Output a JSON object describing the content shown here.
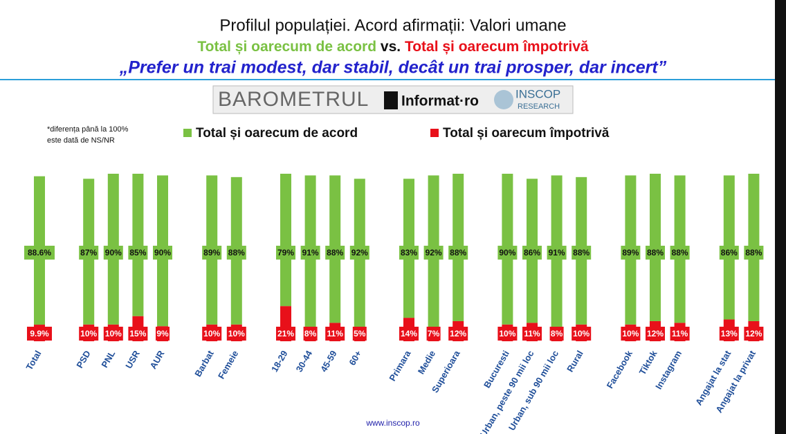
{
  "chart_data": {
    "type": "stacked_bar",
    "title": "Profilul populației. Acord afirmații: Valori umane",
    "subtitle": [
      "Total și oarecum de acord",
      "vs.",
      "Total și oarecum împotrivă"
    ],
    "question": "„Prefer un trai modest, dar stabil, decât un trai prosper, dar incert”",
    "logos": [
      "BAROMETRUL",
      "Informat·ro",
      "INSCOP",
      "RESEARCH"
    ],
    "note": [
      "*diferența până la 100%",
      "este dată de NS/NR"
    ],
    "source": "www.inscop.ro",
    "categories": [
      "Total",
      null,
      "PSD",
      "PNL",
      "USR",
      "AUR",
      null,
      "Barbat",
      "Femeie",
      null,
      "18-29",
      "30-44",
      "45-59",
      "60+",
      null,
      "Primara",
      "Medie",
      "Superioara",
      null,
      "Bucuresti",
      "Urban, peste 90 mii loc",
      "Urban, sub 90 mii loc",
      "Rural",
      null,
      "Facebook",
      "Tiktok",
      "Instagram",
      null,
      "Angajat la stat",
      "Angajat la privat"
    ],
    "series": [
      {
        "name": "Total și oarecum de acord",
        "color": "#7ac143",
        "values": [
          88.6,
          null,
          87,
          90,
          85,
          90,
          null,
          89,
          88,
          null,
          79,
          91,
          88,
          92,
          null,
          83,
          92,
          88,
          null,
          90,
          86,
          91,
          88,
          null,
          89,
          88,
          88,
          null,
          86,
          88
        ],
        "value_labels": [
          "88.6%",
          null,
          "87%",
          "90%",
          "85%",
          "90%",
          null,
          "89%",
          "88%",
          null,
          "79%",
          "91%",
          "88%",
          "92%",
          null,
          "83%",
          "92%",
          "88%",
          null,
          "90%",
          "86%",
          "91%",
          "88%",
          null,
          "89%",
          "88%",
          "88%",
          null,
          "86%",
          "88%"
        ]
      },
      {
        "name": "Total și oarecum împotrivă",
        "color": "#e8101a",
        "values": [
          9.9,
          null,
          10,
          10,
          15,
          9,
          null,
          10,
          10,
          null,
          21,
          8,
          11,
          5,
          null,
          14,
          7,
          12,
          null,
          10,
          11,
          8,
          10,
          null,
          10,
          12,
          11,
          null,
          13,
          12
        ],
        "value_labels": [
          "9.9%",
          null,
          "10%",
          "10%",
          "15%",
          "9%",
          null,
          "10%",
          "10%",
          null,
          "21%",
          "8%",
          "11%",
          "5%",
          null,
          "14%",
          "7%",
          "12%",
          null,
          "10%",
          "11%",
          "8%",
          "10%",
          null,
          "10%",
          "12%",
          "11%",
          null,
          "13%",
          "12%"
        ]
      }
    ],
    "ylim": [
      0,
      100
    ]
  }
}
